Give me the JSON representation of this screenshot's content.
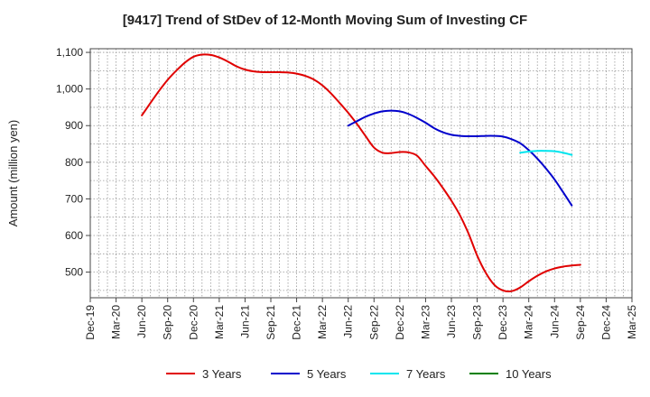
{
  "chart_data": {
    "type": "line",
    "title": "[9417]  Trend of StDev of 12-Month Moving Sum of Investing CF",
    "ylabel": "Amount (million yen)",
    "xlabel": "",
    "ylim": [
      430,
      1110
    ],
    "yticks": [
      500,
      600,
      700,
      800,
      900,
      1000,
      1100
    ],
    "ytick_labels": [
      "500",
      "600",
      "700",
      "800",
      "900",
      "1,000",
      "1,100"
    ],
    "x_categories": [
      "Dec-19",
      "Mar-20",
      "Jun-20",
      "Sep-20",
      "Dec-20",
      "Mar-21",
      "Jun-21",
      "Sep-21",
      "Dec-21",
      "Mar-22",
      "Jun-22",
      "Sep-22",
      "Dec-22",
      "Mar-23",
      "Jun-23",
      "Sep-23",
      "Dec-23",
      "Mar-24",
      "Jun-24",
      "Sep-24",
      "Dec-24",
      "Mar-25"
    ],
    "grid": true,
    "legend_position": "bottom",
    "series": [
      {
        "name": "3 Years",
        "color": "#e00000",
        "points": [
          [
            "Jun-20",
            928
          ],
          [
            "Jul-20",
            962
          ],
          [
            "Aug-20",
            995
          ],
          [
            "Sep-20",
            1025
          ],
          [
            "Oct-20",
            1050
          ],
          [
            "Nov-20",
            1072
          ],
          [
            "Dec-20",
            1088
          ],
          [
            "Jan-21",
            1094
          ],
          [
            "Feb-21",
            1093
          ],
          [
            "Mar-21",
            1086
          ],
          [
            "Apr-21",
            1075
          ],
          [
            "May-21",
            1062
          ],
          [
            "Jun-21",
            1053
          ],
          [
            "Jul-21",
            1048
          ],
          [
            "Aug-21",
            1046
          ],
          [
            "Sep-21",
            1046
          ],
          [
            "Oct-21",
            1046
          ],
          [
            "Nov-21",
            1045
          ],
          [
            "Dec-21",
            1042
          ],
          [
            "Jan-22",
            1036
          ],
          [
            "Feb-22",
            1026
          ],
          [
            "Mar-22",
            1010
          ],
          [
            "Apr-22",
            988
          ],
          [
            "May-22",
            962
          ],
          [
            "Jun-22",
            935
          ],
          [
            "Jul-22",
            905
          ],
          [
            "Aug-22",
            872
          ],
          [
            "Sep-22",
            840
          ],
          [
            "Oct-22",
            826
          ],
          [
            "Nov-22",
            825
          ],
          [
            "Dec-22",
            828
          ],
          [
            "Jan-23",
            827
          ],
          [
            "Feb-23",
            818
          ],
          [
            "Mar-23",
            790
          ],
          [
            "Apr-23",
            762
          ],
          [
            "May-23",
            730
          ],
          [
            "Jun-23",
            695
          ],
          [
            "Jul-23",
            655
          ],
          [
            "Aug-23",
            605
          ],
          [
            "Sep-23",
            545
          ],
          [
            "Oct-23",
            498
          ],
          [
            "Nov-23",
            465
          ],
          [
            "Dec-23",
            450
          ],
          [
            "Jan-24",
            448
          ],
          [
            "Feb-24",
            458
          ],
          [
            "Mar-24",
            475
          ],
          [
            "Apr-24",
            490
          ],
          [
            "May-24",
            502
          ],
          [
            "Jun-24",
            510
          ],
          [
            "Jul-24",
            515
          ],
          [
            "Aug-24",
            518
          ],
          [
            "Sep-24",
            520
          ]
        ]
      },
      {
        "name": "5 Years",
        "color": "#0000cc",
        "points": [
          [
            "Jun-22",
            900
          ],
          [
            "Jul-22",
            912
          ],
          [
            "Aug-22",
            924
          ],
          [
            "Sep-22",
            933
          ],
          [
            "Oct-22",
            939
          ],
          [
            "Nov-22",
            941
          ],
          [
            "Dec-22",
            939
          ],
          [
            "Jan-23",
            932
          ],
          [
            "Feb-23",
            921
          ],
          [
            "Mar-23",
            908
          ],
          [
            "Apr-23",
            893
          ],
          [
            "May-23",
            882
          ],
          [
            "Jun-23",
            875
          ],
          [
            "Jul-23",
            872
          ],
          [
            "Aug-23",
            871
          ],
          [
            "Sep-23",
            871
          ],
          [
            "Oct-23",
            872
          ],
          [
            "Nov-23",
            872
          ],
          [
            "Dec-23",
            870
          ],
          [
            "Jan-24",
            863
          ],
          [
            "Feb-24",
            852
          ],
          [
            "Mar-24",
            833
          ],
          [
            "Apr-24",
            810
          ],
          [
            "May-24",
            783
          ],
          [
            "Jun-24",
            753
          ],
          [
            "Jul-24",
            718
          ],
          [
            "Aug-24",
            682
          ]
        ]
      },
      {
        "name": "7 Years",
        "color": "#00e5ee",
        "points": [
          [
            "Feb-24",
            826
          ],
          [
            "Mar-24",
            829
          ],
          [
            "Apr-24",
            831
          ],
          [
            "May-24",
            831
          ],
          [
            "Jun-24",
            830
          ],
          [
            "Jul-24",
            826
          ],
          [
            "Aug-24",
            820
          ]
        ]
      },
      {
        "name": "10 Years",
        "color": "#008000",
        "points": []
      }
    ]
  }
}
